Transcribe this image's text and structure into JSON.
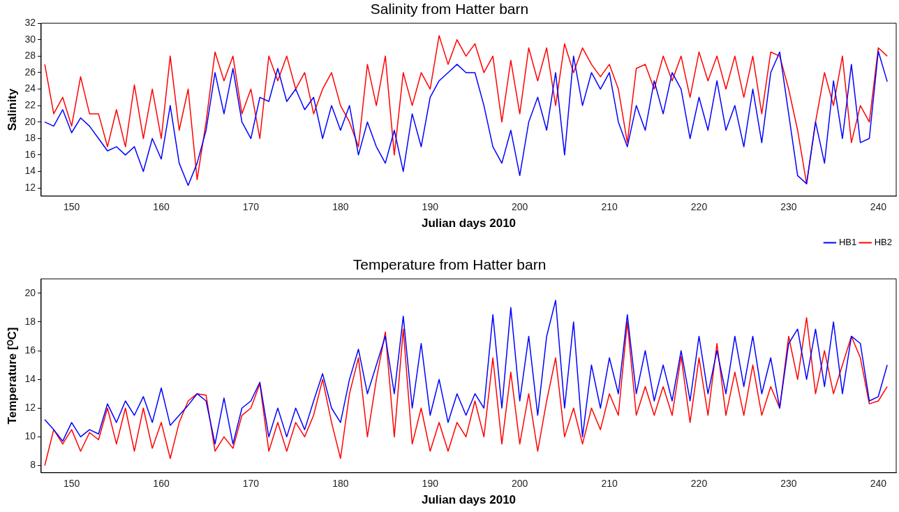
{
  "chart_data": [
    {
      "type": "line",
      "title": "Salinity from Hatter barn",
      "xlabel": "Julian days 2010",
      "ylabel": "Salinity",
      "xlim": [
        146.6,
        242
      ],
      "xticks": [
        150,
        160,
        170,
        180,
        190,
        200,
        210,
        220,
        230,
        240
      ],
      "ylim": [
        11,
        32
      ],
      "yticks": [
        12,
        14,
        16,
        18,
        20,
        22,
        24,
        26,
        28,
        30,
        32
      ],
      "grid": false,
      "legend": "bottom right",
      "marker": "none",
      "line_style": "solid",
      "x": [
        147,
        148,
        149,
        150,
        151,
        152,
        153,
        154,
        155,
        156,
        157,
        158,
        159,
        160,
        161,
        162,
        163,
        164,
        165,
        166,
        167,
        168,
        169,
        170,
        171,
        172,
        173,
        174,
        175,
        176,
        177,
        178,
        179,
        180,
        181,
        182,
        183,
        184,
        185,
        186,
        187,
        188,
        189,
        190,
        191,
        192,
        193,
        194,
        195,
        196,
        197,
        198,
        199,
        200,
        201,
        202,
        203,
        204,
        205,
        206,
        207,
        208,
        209,
        210,
        211,
        212,
        213,
        214,
        215,
        216,
        217,
        218,
        219,
        220,
        221,
        222,
        223,
        224,
        225,
        226,
        227,
        228,
        229,
        230,
        231,
        232,
        233,
        234,
        235,
        236,
        237,
        238,
        239,
        240,
        241
      ],
      "series": [
        {
          "name": "HB1",
          "color": "#0000ff",
          "values": [
            20,
            19.5,
            21.5,
            18.7,
            20.5,
            19.5,
            18,
            16.5,
            17,
            16,
            17,
            14,
            18,
            15.5,
            22,
            15,
            12.3,
            15,
            19,
            26,
            21,
            26.5,
            20,
            18,
            23,
            22.5,
            26.5,
            22.5,
            24,
            21.5,
            23,
            18,
            22,
            19,
            22,
            16,
            20,
            17,
            15,
            19,
            14,
            21,
            17,
            23,
            25,
            26,
            27,
            26,
            26,
            22,
            17,
            15,
            19,
            13.5,
            20,
            23,
            19,
            26,
            16,
            28,
            22,
            26,
            24,
            26,
            20,
            17,
            22,
            19,
            25,
            21,
            26,
            24,
            18,
            23,
            19,
            25,
            19,
            22,
            17,
            24,
            17.5,
            26,
            28.5,
            21,
            13.5,
            12.5,
            20,
            15,
            25,
            18,
            27,
            17.5,
            18,
            28.6,
            24.9
          ]
        },
        {
          "name": "HB2",
          "color": "#ff0000",
          "values": [
            27,
            21,
            23,
            19.5,
            25.5,
            21,
            21,
            17,
            21.5,
            17,
            24.5,
            18,
            24,
            18,
            28,
            19,
            24,
            13,
            20,
            28.5,
            25,
            28,
            21,
            24,
            18,
            28,
            25,
            28,
            24,
            26,
            21,
            24,
            26,
            22,
            20,
            17,
            27,
            22,
            28,
            16,
            26,
            22,
            26,
            24,
            30.5,
            27,
            30,
            28,
            29.5,
            26,
            28,
            20,
            27.5,
            21,
            29,
            25,
            29,
            22,
            29.5,
            26,
            29,
            27,
            25.5,
            27,
            24,
            17.5,
            26.5,
            27,
            24,
            28,
            25,
            28,
            23,
            28.5,
            25,
            28,
            24,
            28,
            23,
            28,
            21,
            28.5,
            28,
            24,
            19,
            12.5,
            20,
            26,
            22,
            28,
            17.5,
            22,
            20,
            29,
            28
          ]
        }
      ]
    },
    {
      "type": "line",
      "title": "Temperature from Hatter barn",
      "xlabel": "Julian days 2010",
      "ylabel": "Temperature [ᴼC]",
      "xlim": [
        146.6,
        242
      ],
      "xticks": [
        150,
        160,
        170,
        180,
        190,
        200,
        210,
        220,
        230,
        240
      ],
      "ylim": [
        7.5,
        21
      ],
      "yticks": [
        8,
        10,
        12,
        14,
        16,
        18,
        20
      ],
      "grid": false,
      "marker": "none",
      "line_style": "solid",
      "x": [
        147,
        148,
        149,
        150,
        151,
        152,
        153,
        154,
        155,
        156,
        157,
        158,
        159,
        160,
        161,
        162,
        163,
        164,
        165,
        166,
        167,
        168,
        169,
        170,
        171,
        172,
        173,
        174,
        175,
        176,
        177,
        178,
        179,
        180,
        181,
        182,
        183,
        184,
        185,
        186,
        187,
        188,
        189,
        190,
        191,
        192,
        193,
        194,
        195,
        196,
        197,
        198,
        199,
        200,
        201,
        202,
        203,
        204,
        205,
        206,
        207,
        208,
        209,
        210,
        211,
        212,
        213,
        214,
        215,
        216,
        217,
        218,
        219,
        220,
        221,
        222,
        223,
        224,
        225,
        226,
        227,
        228,
        229,
        230,
        231,
        232,
        233,
        234,
        235,
        236,
        237,
        238,
        239,
        240,
        241
      ],
      "series": [
        {
          "color": "#0000ff",
          "values": [
            11.2,
            10.5,
            9.7,
            11,
            10,
            10.5,
            10.2,
            12.3,
            11,
            12.5,
            11.5,
            12.8,
            11,
            13.4,
            10.8,
            11.5,
            12.2,
            13,
            12.5,
            9.5,
            12.7,
            9.5,
            12,
            12.5,
            13.8,
            10,
            12,
            10,
            12,
            10.5,
            12.5,
            14.4,
            12,
            11,
            14,
            16.1,
            13,
            15,
            17,
            13,
            18.4,
            12,
            16.5,
            11.5,
            14,
            11,
            13,
            11.5,
            13,
            12,
            18.5,
            12,
            19,
            12.5,
            17,
            11.5,
            17,
            19.5,
            12,
            18,
            10,
            15,
            12,
            15.5,
            13,
            18.5,
            13,
            16,
            12.5,
            15,
            12.5,
            16,
            12.5,
            17,
            13,
            16,
            13,
            17,
            13.5,
            17,
            13,
            15.5,
            12,
            16.5,
            17.5,
            14,
            17.5,
            13.5,
            18,
            13,
            17,
            16.5,
            12.5,
            12.8,
            15
          ]
        },
        {
          "color": "#ff0000",
          "values": [
            8,
            10.5,
            9.5,
            10.5,
            9,
            10.3,
            9.8,
            12,
            9.5,
            12,
            9,
            12,
            9.2,
            11,
            8.5,
            11,
            12.5,
            13,
            12.9,
            9,
            10,
            9.2,
            11.5,
            12,
            13.7,
            9,
            11,
            9,
            11,
            10,
            11.5,
            14,
            11,
            8.5,
            13,
            15.5,
            10,
            14,
            17.3,
            10,
            17.5,
            9.5,
            12,
            9,
            11,
            9,
            11,
            10,
            12.5,
            10,
            15.5,
            9.5,
            14.5,
            9.5,
            13,
            9,
            12.5,
            15.5,
            10,
            12,
            9.5,
            12,
            10.5,
            13,
            11.5,
            18,
            11.5,
            13.5,
            11.5,
            13.5,
            11.5,
            15.6,
            11,
            15.5,
            11.5,
            16.5,
            11.5,
            14.5,
            11.5,
            15,
            11.5,
            13.5,
            12,
            17,
            14,
            18.3,
            13,
            16,
            13,
            15,
            17,
            15.5,
            12.3,
            12.5,
            13.5
          ]
        }
      ]
    }
  ]
}
